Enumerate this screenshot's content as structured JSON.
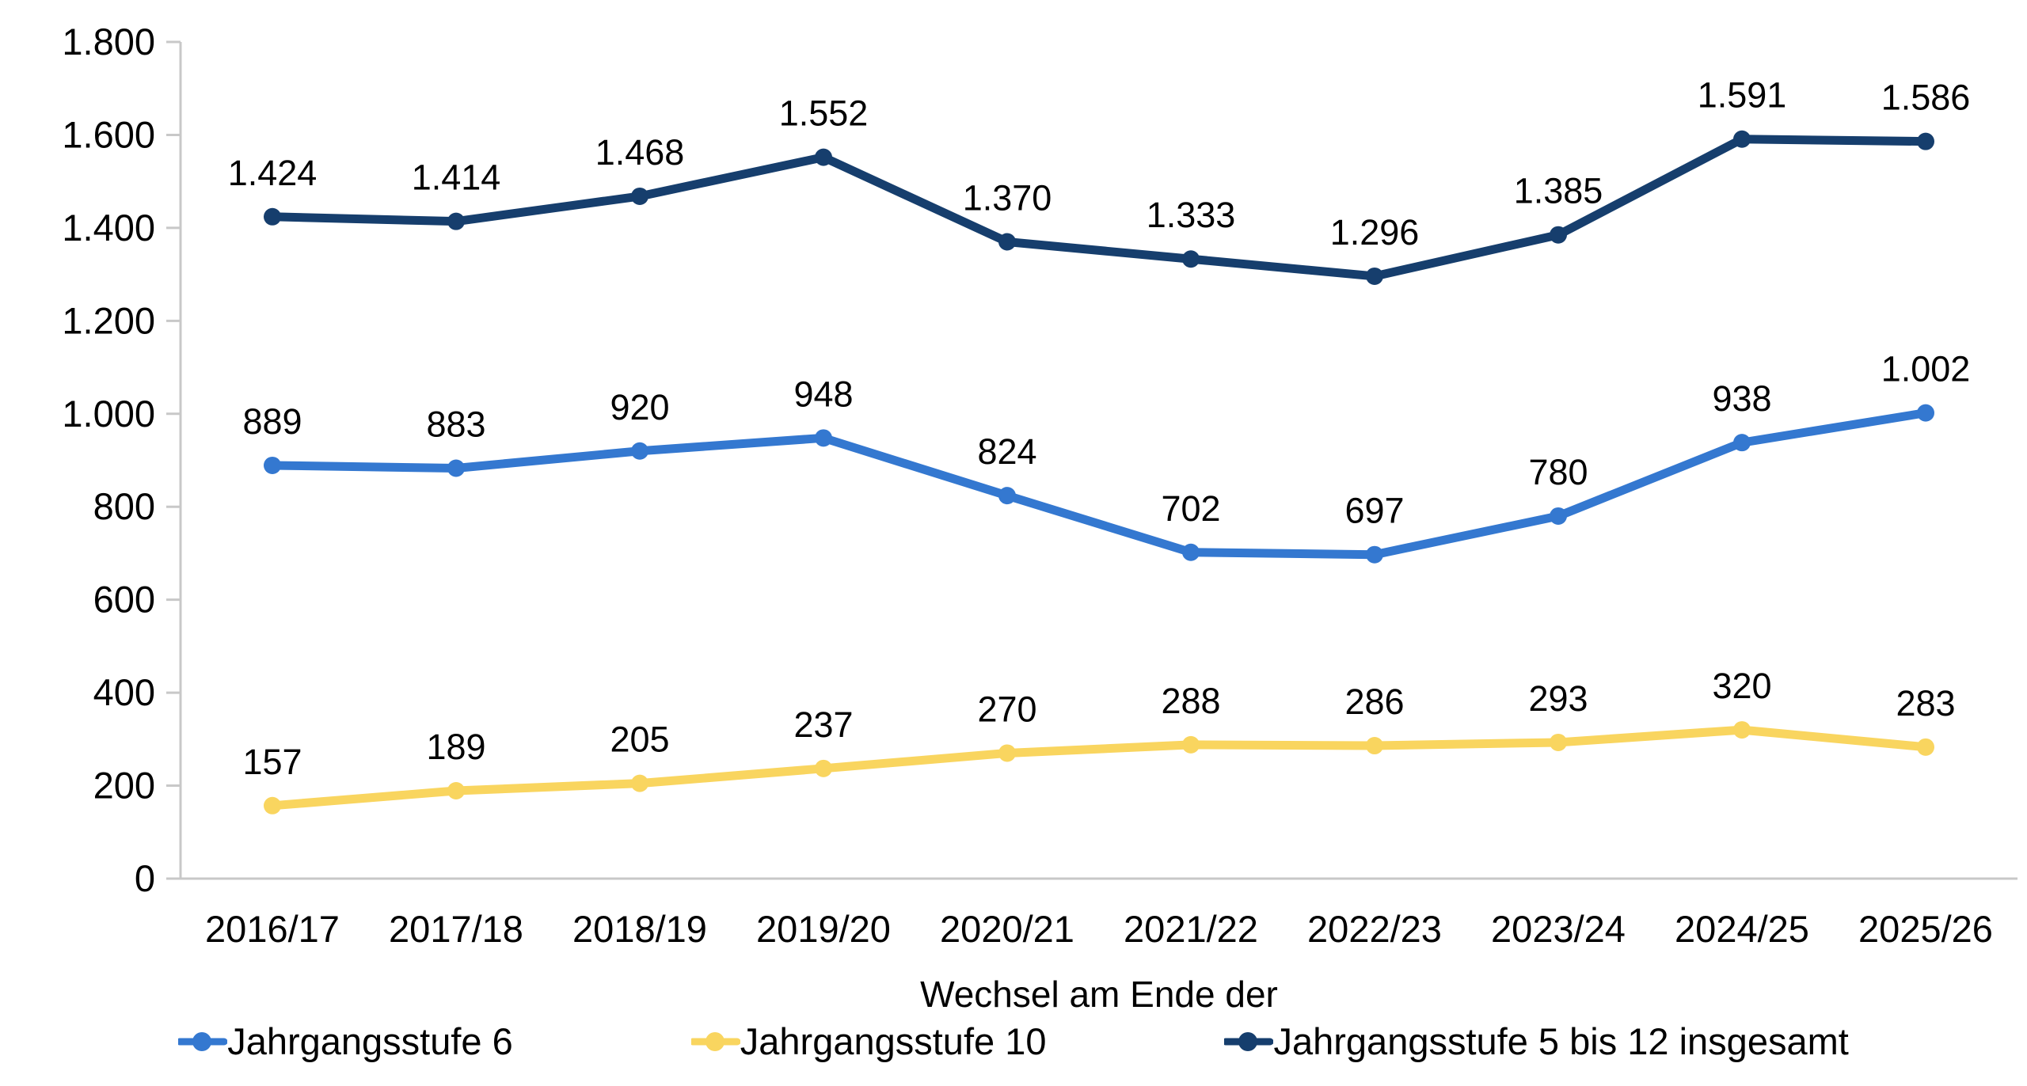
{
  "chart_data": {
    "type": "line",
    "categories": [
      "2016/17",
      "2017/18",
      "2018/19",
      "2019/20",
      "2020/21",
      "2021/22",
      "2022/23",
      "2023/24",
      "2024/25",
      "2025/26"
    ],
    "series": [
      {
        "name": "Jahrgangsstufe 6",
        "color": "#3478D0",
        "values": [
          889,
          883,
          920,
          948,
          824,
          702,
          697,
          780,
          938,
          1002
        ],
        "labels": [
          "889",
          "883",
          "920",
          "948",
          "824",
          "702",
          "697",
          "780",
          "938",
          "1.002"
        ]
      },
      {
        "name": "Jahrgangsstufe 10",
        "color": "#F9D55F",
        "values": [
          157,
          189,
          205,
          237,
          270,
          288,
          286,
          293,
          320,
          283
        ],
        "labels": [
          "157",
          "189",
          "205",
          "237",
          "270",
          "288",
          "286",
          "293",
          "320",
          "283"
        ]
      },
      {
        "name": "Jahrgangsstufe 5 bis 12 insgesamt",
        "color": "#163E6D",
        "values": [
          1424,
          1414,
          1468,
          1552,
          1370,
          1333,
          1296,
          1385,
          1591,
          1586
        ],
        "labels": [
          "1.424",
          "1.414",
          "1.468",
          "1.552",
          "1.370",
          "1.333",
          "1.296",
          "1.385",
          "1.591",
          "1.586"
        ]
      }
    ],
    "xlabel": "Wechsel am Ende der",
    "ylabel": "",
    "ylim": [
      0,
      1800
    ],
    "ytick_step": 200,
    "ytick_labels": [
      "0",
      "200",
      "400",
      "600",
      "800",
      "1.000",
      "1.200",
      "1.400",
      "1.600",
      "1.800"
    ],
    "grid": false,
    "legend_position": "bottom",
    "axis_color": "#C8C8C8"
  }
}
